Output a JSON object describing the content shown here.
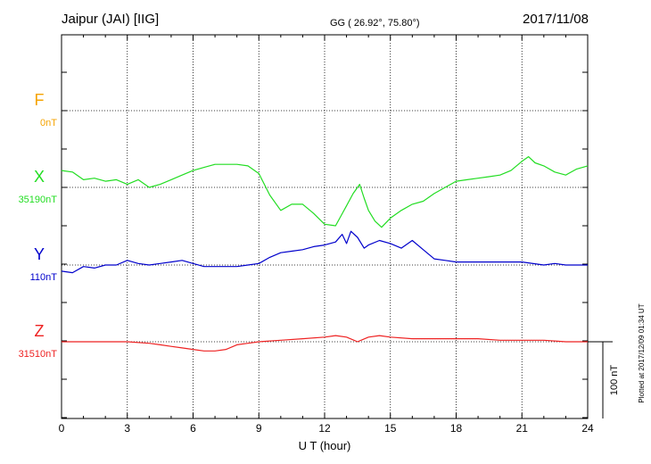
{
  "header": {
    "station": "Jaipur (JAI)  [IIG]",
    "coords": "GG ( 26.92°,  75.80°)",
    "date": "2017/11/08"
  },
  "footer": {
    "plotted": "Plotted at 2017/12/09 01:34  UT",
    "scale": "100 nT"
  },
  "chart_data": {
    "type": "line",
    "xlabel": "U T (hour)",
    "xlim": [
      0,
      24
    ],
    "xticks": [
      "0",
      "3",
      "6",
      "9",
      "12",
      "15",
      "18",
      "21",
      "24"
    ],
    "scale_bar_nT": 100,
    "grid": true,
    "series": [
      {
        "name": "F",
        "baseline_label": "0nT",
        "color": "#f5a300",
        "x": [],
        "y": []
      },
      {
        "name": "X",
        "baseline_label": "35190nT",
        "color": "#22dd22",
        "x": [
          0,
          0.5,
          1,
          1.5,
          2,
          2.5,
          3,
          3.5,
          4,
          4.5,
          5,
          5.5,
          6,
          6.5,
          7,
          7.5,
          8,
          8.5,
          9,
          9.5,
          10,
          10.5,
          11,
          11.5,
          12,
          12.5,
          13,
          13.3,
          13.6,
          13.8,
          14,
          14.3,
          14.6,
          15,
          15.5,
          16,
          16.5,
          17,
          17.5,
          18,
          18.5,
          19,
          19.5,
          20,
          20.5,
          21,
          21.3,
          21.6,
          22,
          22.5,
          23,
          23.5,
          24
        ],
        "y": [
          22,
          20,
          10,
          12,
          8,
          10,
          4,
          10,
          0,
          4,
          10,
          16,
          22,
          26,
          30,
          30,
          30,
          28,
          18,
          -10,
          -30,
          -22,
          -22,
          -34,
          -48,
          -50,
          -24,
          -8,
          4,
          -14,
          -30,
          -44,
          -52,
          -40,
          -30,
          -22,
          -18,
          -8,
          0,
          8,
          10,
          12,
          14,
          16,
          22,
          34,
          40,
          32,
          28,
          20,
          16,
          24,
          28
        ]
      },
      {
        "name": "Y",
        "baseline_label": "110nT",
        "color": "#0000cc",
        "x": [
          0,
          0.5,
          1,
          1.5,
          2,
          2.5,
          3,
          3.5,
          4,
          4.5,
          5,
          5.5,
          6,
          6.5,
          7,
          7.5,
          8,
          8.5,
          9,
          9.5,
          10,
          10.5,
          11,
          11.5,
          12,
          12.5,
          12.8,
          13,
          13.2,
          13.5,
          13.8,
          14,
          14.5,
          15,
          15.5,
          16,
          16.5,
          17,
          17.5,
          18,
          19,
          20,
          21,
          22,
          22.5,
          23,
          24
        ],
        "y": [
          -8,
          -10,
          -2,
          -4,
          0,
          0,
          6,
          2,
          0,
          2,
          4,
          6,
          2,
          -2,
          -2,
          -2,
          -2,
          0,
          2,
          10,
          16,
          18,
          20,
          24,
          26,
          30,
          40,
          28,
          44,
          36,
          22,
          26,
          32,
          28,
          22,
          32,
          20,
          8,
          6,
          4,
          4,
          4,
          4,
          0,
          2,
          0,
          0
        ]
      },
      {
        "name": "Z",
        "baseline_label": "31510nT",
        "color": "#ee2222",
        "x": [
          0,
          1,
          2,
          3,
          4,
          4.5,
          5,
          5.5,
          6,
          6.5,
          7,
          7.5,
          8,
          8.5,
          9,
          10,
          11,
          12,
          12.5,
          13,
          13.5,
          14,
          14.5,
          15,
          16,
          17,
          18,
          19,
          20,
          21,
          22,
          23,
          24
        ],
        "y": [
          0,
          0,
          0,
          0,
          -2,
          -4,
          -6,
          -8,
          -10,
          -12,
          -12,
          -10,
          -4,
          -2,
          0,
          2,
          4,
          6,
          8,
          6,
          0,
          6,
          8,
          6,
          4,
          4,
          4,
          4,
          2,
          2,
          2,
          0,
          0
        ]
      }
    ]
  }
}
